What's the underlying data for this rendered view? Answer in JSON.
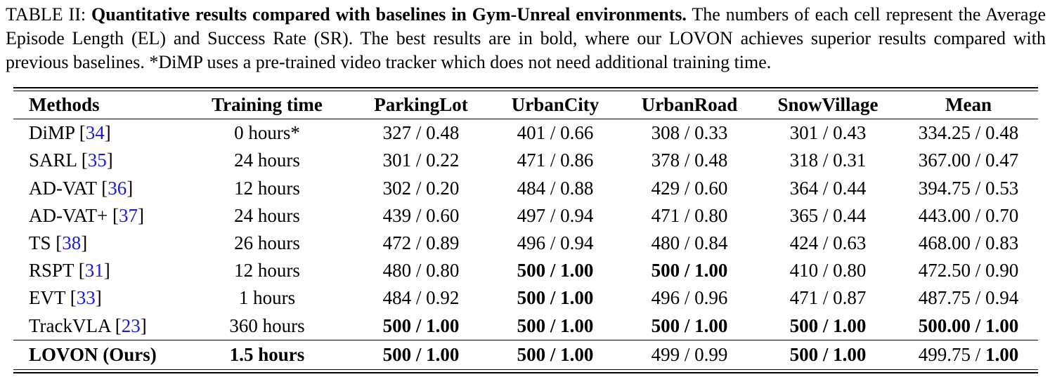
{
  "caption": {
    "label": "TABLE II: ",
    "title": "Quantitative results compared with baselines in Gym-Unreal environments.",
    "text": " The numbers of each cell represent the Average Episode Length (EL) and Success Rate (SR). The best results are in bold, where our LOVON achieves superior results compared with previous baselines. *DiMP uses a pre-trained video tracker which does not need additional training time."
  },
  "table": {
    "headers": [
      "Methods",
      "Training time",
      "ParkingLot",
      "UrbanCity",
      "UrbanRoad",
      "SnowVillage",
      "Mean"
    ],
    "rows": [
      {
        "method": "DiMP",
        "ref": "34",
        "time": "0 hours*",
        "parking": "327 / 0.48",
        "urban_city": "401 / 0.66",
        "urban_road": "308 / 0.33",
        "snow": "301 / 0.43",
        "mean": "334.25 / 0.48"
      },
      {
        "method": "SARL",
        "ref": "35",
        "time": "24 hours",
        "parking": "301 / 0.22",
        "urban_city": "471 / 0.86",
        "urban_road": "378 / 0.48",
        "snow": "318 / 0.31",
        "mean": "367.00 / 0.47"
      },
      {
        "method": "AD-VAT",
        "ref": "36",
        "time": "12 hours",
        "parking": "302 / 0.20",
        "urban_city": "484 / 0.88",
        "urban_road": "429 / 0.60",
        "snow": "364 / 0.44",
        "mean": "394.75 / 0.53"
      },
      {
        "method": "AD-VAT+",
        "ref": "37",
        "time": "24 hours",
        "parking": "439 / 0.60",
        "urban_city": "497 / 0.94",
        "urban_road": "471 / 0.80",
        "snow": "365 / 0.44",
        "mean": "443.00 / 0.70"
      },
      {
        "method": "TS",
        "ref": "38",
        "time": "26 hours",
        "parking": "472 / 0.89",
        "urban_city": "496 / 0.94",
        "urban_road": "480 / 0.84",
        "snow": "424 / 0.63",
        "mean": "468.00 / 0.83"
      },
      {
        "method": "RSPT",
        "ref": "31",
        "time": "12 hours",
        "parking": "480 / 0.80",
        "urban_city": "500 / 1.00",
        "urban_road": "500 / 1.00",
        "snow": "410 / 0.80",
        "mean": "472.50 / 0.90"
      },
      {
        "method": "EVT",
        "ref": "33",
        "time": "1 hours",
        "parking": "484 / 0.92",
        "urban_city": "500 / 1.00",
        "urban_road": "496 / 0.96",
        "snow": "471 / 0.87",
        "mean": "487.75 / 0.94"
      },
      {
        "method": "TrackVLA",
        "ref": "23",
        "time": "360 hours",
        "parking": "500 / 1.00",
        "urban_city": "500 / 1.00",
        "urban_road": "500 / 1.00",
        "snow": "500 / 1.00",
        "mean": "500.00 / 1.00"
      }
    ],
    "ours": {
      "method": "LOVON (Ours)",
      "time": "1.5 hours",
      "parking": "500 / 1.00",
      "urban_city": "500 / 1.00",
      "urban_road": "499 / 0.99",
      "snow": "500 / 1.00",
      "mean_el": "499.75",
      "mean_sep": " / ",
      "mean_sr": "1.00"
    }
  }
}
